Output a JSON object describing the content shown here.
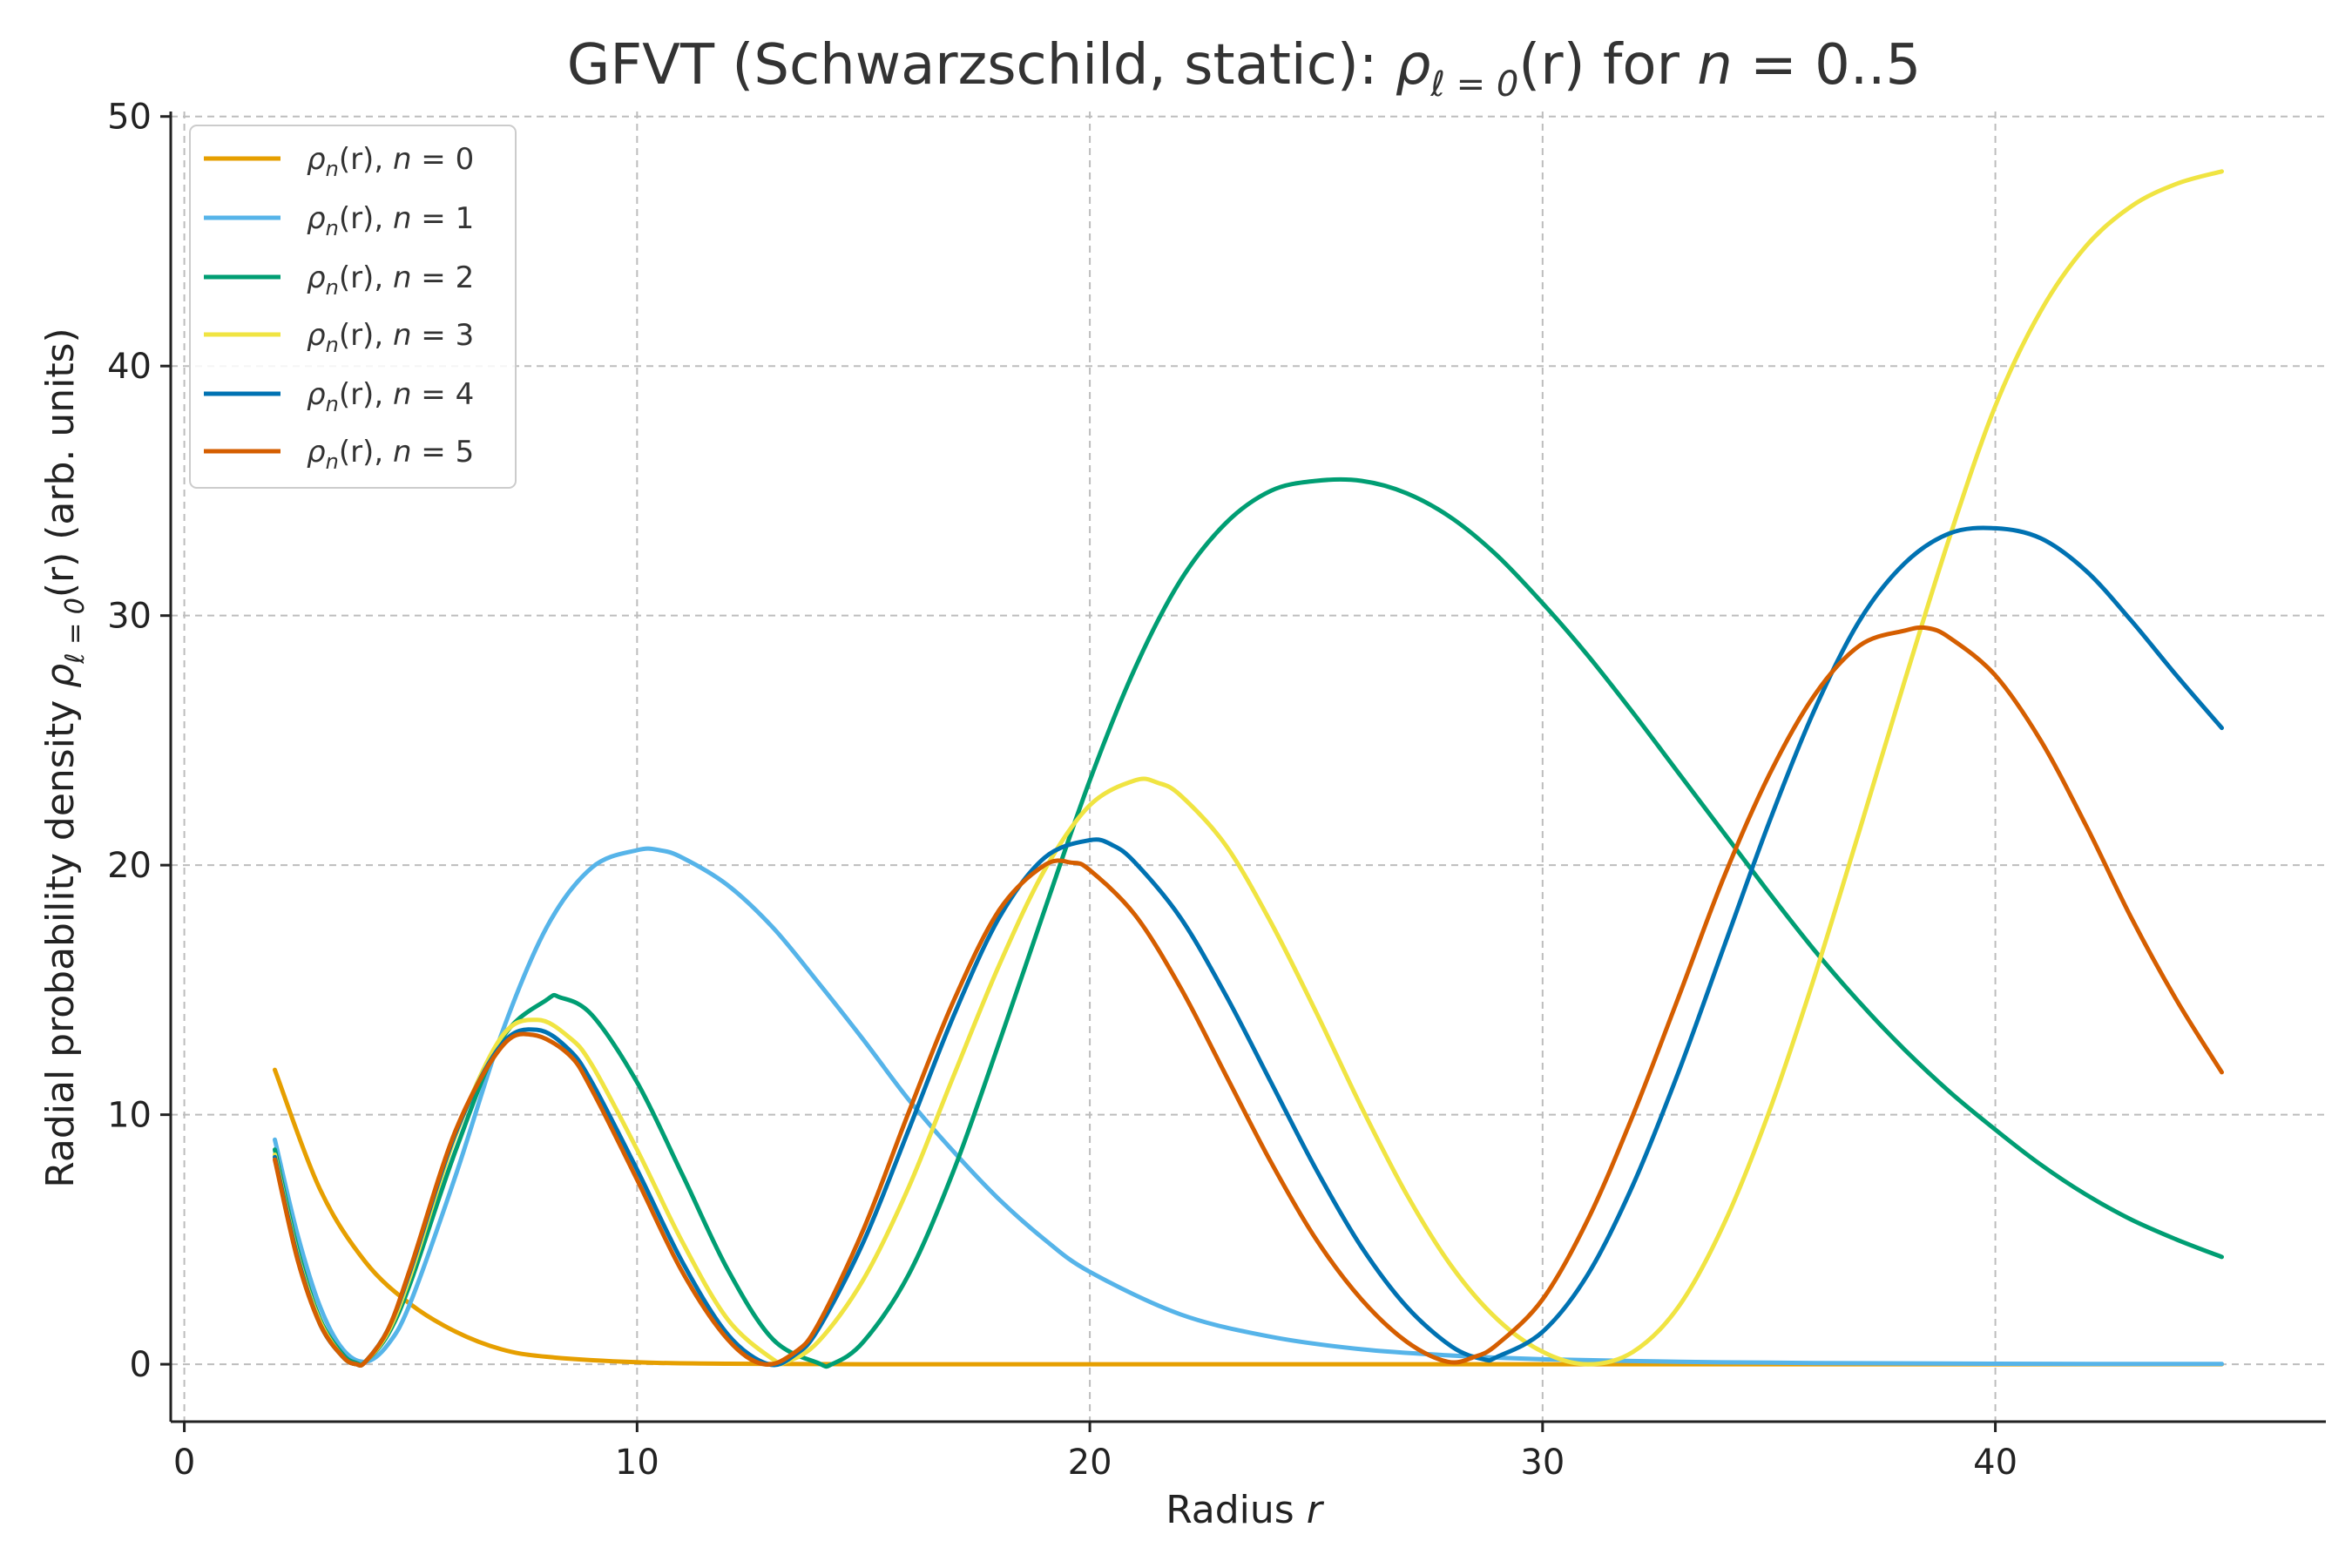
{
  "chart_data": {
    "type": "line",
    "title": "GFVT (Schwarzschild, static): ρℓ = 0(r) for n = 0..5",
    "title_parts": {
      "prefix": "GFVT (Schwarzschild, static): ",
      "rho": "ρ",
      "sub": "ℓ = 0",
      "arg": "(r)",
      "mid": " for ",
      "n": "n",
      "tail": " = 0..5"
    },
    "xlabel": "Radius r",
    "xlabel_parts": {
      "text": "Radius ",
      "var": "r"
    },
    "ylabel": "Radial probability density ρℓ = 0(r) (arb. units)",
    "ylabel_parts": {
      "text": "Radial probability density ",
      "rho": "ρ",
      "sub": "ℓ = 0",
      "arg": "(r)",
      "tail": " (arb. units)"
    },
    "xlim": [
      -0.3,
      47.3
    ],
    "ylim": [
      -2.3,
      50.2
    ],
    "xticks": [
      0,
      10,
      20,
      30,
      40
    ],
    "yticks": [
      0,
      10,
      20,
      30,
      40,
      50
    ],
    "grid": true,
    "legend_position": "top-left",
    "series": [
      {
        "name": "ρn(r), n = 0",
        "color": "#E69F00",
        "points": [
          [
            2,
            11.8
          ],
          [
            3,
            7.0
          ],
          [
            4,
            4.1
          ],
          [
            5,
            2.4
          ],
          [
            6,
            1.3
          ],
          [
            7,
            0.6
          ],
          [
            8,
            0.3
          ],
          [
            10,
            0.08
          ],
          [
            12,
            0.02
          ],
          [
            15,
            0
          ],
          [
            20,
            0
          ],
          [
            25,
            0
          ],
          [
            30,
            0
          ],
          [
            35,
            0
          ],
          [
            40,
            0
          ],
          [
            45,
            0
          ]
        ]
      },
      {
        "name": "ρn(r), n = 1",
        "color": "#56B4E9",
        "points": [
          [
            2,
            9.0
          ],
          [
            2.5,
            5.2
          ],
          [
            3,
            2.3
          ],
          [
            3.5,
            0.6
          ],
          [
            4,
            0.1
          ],
          [
            4.5,
            0.8
          ],
          [
            5,
            2.5
          ],
          [
            6,
            7.6
          ],
          [
            7,
            13.2
          ],
          [
            8,
            17.5
          ],
          [
            9,
            19.9
          ],
          [
            10,
            20.6
          ],
          [
            10.5,
            20.6
          ],
          [
            11,
            20.3
          ],
          [
            12,
            19.2
          ],
          [
            13,
            17.5
          ],
          [
            14,
            15.3
          ],
          [
            15,
            13.0
          ],
          [
            16,
            10.6
          ],
          [
            17,
            8.5
          ],
          [
            18,
            6.6
          ],
          [
            19,
            5.0
          ],
          [
            20,
            3.7
          ],
          [
            22,
            2.0
          ],
          [
            24,
            1.1
          ],
          [
            26,
            0.6
          ],
          [
            28,
            0.35
          ],
          [
            30,
            0.2
          ],
          [
            33,
            0.1
          ],
          [
            36,
            0.05
          ],
          [
            40,
            0.02
          ],
          [
            45,
            0.01
          ]
        ]
      },
      {
        "name": "ρn(r), n = 2",
        "color": "#009E73",
        "points": [
          [
            2,
            8.6
          ],
          [
            2.5,
            4.6
          ],
          [
            3,
            1.8
          ],
          [
            3.5,
            0.4
          ],
          [
            3.8,
            0.05
          ],
          [
            4,
            0.1
          ],
          [
            4.5,
            1.2
          ],
          [
            5,
            3.3
          ],
          [
            6,
            8.6
          ],
          [
            7,
            13.0
          ],
          [
            8,
            14.6
          ],
          [
            8.3,
            14.7
          ],
          [
            9,
            14.0
          ],
          [
            10,
            11.3
          ],
          [
            11,
            7.6
          ],
          [
            12,
            3.8
          ],
          [
            13,
            1.0
          ],
          [
            14,
            0.05
          ],
          [
            14.3,
            0
          ],
          [
            15,
            0.9
          ],
          [
            16,
            3.6
          ],
          [
            17,
            7.8
          ],
          [
            18,
            12.9
          ],
          [
            19,
            18.2
          ],
          [
            20,
            23.4
          ],
          [
            21,
            27.9
          ],
          [
            22,
            31.4
          ],
          [
            23,
            33.7
          ],
          [
            24,
            35.0
          ],
          [
            25,
            35.4
          ],
          [
            26,
            35.4
          ],
          [
            27,
            34.9
          ],
          [
            28,
            33.9
          ],
          [
            29,
            32.4
          ],
          [
            30,
            30.5
          ],
          [
            31,
            28.4
          ],
          [
            32,
            26.1
          ],
          [
            33,
            23.7
          ],
          [
            34,
            21.3
          ],
          [
            35,
            18.9
          ],
          [
            36,
            16.6
          ],
          [
            37,
            14.5
          ],
          [
            38,
            12.6
          ],
          [
            39,
            10.9
          ],
          [
            40,
            9.4
          ],
          [
            41,
            8.0
          ],
          [
            42,
            6.8
          ],
          [
            43,
            5.8
          ],
          [
            44,
            5.0
          ],
          [
            45,
            4.3
          ]
        ]
      },
      {
        "name": "ρn(r), n = 3",
        "color": "#F0E442",
        "points": [
          [
            2,
            8.4
          ],
          [
            2.5,
            4.4
          ],
          [
            3,
            1.7
          ],
          [
            3.5,
            0.3
          ],
          [
            3.8,
            0
          ],
          [
            4,
            0.1
          ],
          [
            4.5,
            1.3
          ],
          [
            5,
            3.6
          ],
          [
            6,
            9.2
          ],
          [
            7,
            13.1
          ],
          [
            7.8,
            13.8
          ],
          [
            8.5,
            13.1
          ],
          [
            9,
            12.0
          ],
          [
            10,
            8.6
          ],
          [
            11,
            4.9
          ],
          [
            12,
            1.8
          ],
          [
            13,
            0.2
          ],
          [
            13.3,
            0.1
          ],
          [
            14,
            0.9
          ],
          [
            15,
            3.4
          ],
          [
            16,
            7.1
          ],
          [
            17,
            11.6
          ],
          [
            18,
            16.0
          ],
          [
            19,
            19.8
          ],
          [
            20,
            22.4
          ],
          [
            21,
            23.4
          ],
          [
            21.5,
            23.3
          ],
          [
            22,
            22.8
          ],
          [
            23,
            20.8
          ],
          [
            24,
            17.7
          ],
          [
            25,
            14.1
          ],
          [
            26,
            10.3
          ],
          [
            27,
            6.8
          ],
          [
            28,
            3.9
          ],
          [
            29,
            1.8
          ],
          [
            30,
            0.5
          ],
          [
            31,
            0
          ],
          [
            32,
            0.5
          ],
          [
            33,
            2.3
          ],
          [
            34,
            5.6
          ],
          [
            35,
            10.1
          ],
          [
            36,
            15.5
          ],
          [
            37,
            21.4
          ],
          [
            38,
            27.4
          ],
          [
            39,
            33.2
          ],
          [
            40,
            38.4
          ],
          [
            41,
            42.2
          ],
          [
            42,
            44.8
          ],
          [
            43,
            46.4
          ],
          [
            44,
            47.3
          ],
          [
            45,
            47.8
          ]
        ]
      },
      {
        "name": "ρn(r), n = 4",
        "color": "#0072B2",
        "points": [
          [
            2,
            8.3
          ],
          [
            2.5,
            4.3
          ],
          [
            3,
            1.6
          ],
          [
            3.5,
            0.3
          ],
          [
            3.8,
            0
          ],
          [
            4,
            0.1
          ],
          [
            4.5,
            1.4
          ],
          [
            5,
            3.8
          ],
          [
            6,
            9.3
          ],
          [
            7,
            12.8
          ],
          [
            7.8,
            13.4
          ],
          [
            8.5,
            12.6
          ],
          [
            9,
            11.3
          ],
          [
            10,
            7.8
          ],
          [
            11,
            4.1
          ],
          [
            12,
            1.2
          ],
          [
            12.9,
            0
          ],
          [
            13.5,
            0.4
          ],
          [
            14,
            1.4
          ],
          [
            15,
            4.9
          ],
          [
            16,
            9.4
          ],
          [
            17,
            14.0
          ],
          [
            18,
            17.9
          ],
          [
            19,
            20.3
          ],
          [
            20,
            21.0
          ],
          [
            20.5,
            20.8
          ],
          [
            21,
            20.1
          ],
          [
            22,
            17.9
          ],
          [
            23,
            14.8
          ],
          [
            24,
            11.3
          ],
          [
            25,
            7.8
          ],
          [
            26,
            4.7
          ],
          [
            27,
            2.3
          ],
          [
            28,
            0.7
          ],
          [
            28.7,
            0.2
          ],
          [
            29,
            0.3
          ],
          [
            30,
            1.3
          ],
          [
            31,
            3.6
          ],
          [
            32,
            7.2
          ],
          [
            33,
            11.7
          ],
          [
            34,
            16.7
          ],
          [
            35,
            21.7
          ],
          [
            36,
            26.2
          ],
          [
            37,
            29.8
          ],
          [
            38,
            32.1
          ],
          [
            39,
            33.3
          ],
          [
            40,
            33.5
          ],
          [
            41,
            33.1
          ],
          [
            42,
            31.8
          ],
          [
            43,
            29.8
          ],
          [
            44,
            27.6
          ],
          [
            45,
            25.5
          ]
        ]
      },
      {
        "name": "ρn(r), n = 5",
        "color": "#D55E00",
        "points": [
          [
            2,
            8.2
          ],
          [
            2.5,
            4.2
          ],
          [
            3,
            1.6
          ],
          [
            3.5,
            0.3
          ],
          [
            3.8,
            0
          ],
          [
            4,
            0.1
          ],
          [
            4.5,
            1.4
          ],
          [
            5,
            3.9
          ],
          [
            6,
            9.4
          ],
          [
            7,
            12.7
          ],
          [
            7.7,
            13.2
          ],
          [
            8.5,
            12.4
          ],
          [
            9,
            11.0
          ],
          [
            10,
            7.4
          ],
          [
            11,
            3.7
          ],
          [
            12,
            1.0
          ],
          [
            12.8,
            0
          ],
          [
            13.5,
            0.5
          ],
          [
            14,
            1.6
          ],
          [
            15,
            5.4
          ],
          [
            16,
            10.1
          ],
          [
            17,
            14.6
          ],
          [
            18,
            18.2
          ],
          [
            19,
            20.0
          ],
          [
            19.6,
            20.1
          ],
          [
            20,
            19.8
          ],
          [
            21,
            18.0
          ],
          [
            22,
            15.1
          ],
          [
            23,
            11.6
          ],
          [
            24,
            8.1
          ],
          [
            25,
            5.0
          ],
          [
            26,
            2.6
          ],
          [
            27,
            0.9
          ],
          [
            27.9,
            0.1
          ],
          [
            28.5,
            0.3
          ],
          [
            29,
            0.8
          ],
          [
            30,
            2.6
          ],
          [
            31,
            5.8
          ],
          [
            32,
            10.0
          ],
          [
            33,
            14.7
          ],
          [
            34,
            19.5
          ],
          [
            35,
            23.6
          ],
          [
            36,
            26.8
          ],
          [
            37,
            28.8
          ],
          [
            38,
            29.4
          ],
          [
            38.5,
            29.5
          ],
          [
            39,
            29.1
          ],
          [
            40,
            27.6
          ],
          [
            41,
            25.0
          ],
          [
            42,
            21.6
          ],
          [
            43,
            17.9
          ],
          [
            44,
            14.6
          ],
          [
            45,
            11.7
          ]
        ]
      }
    ]
  },
  "legend": {
    "entries": [
      {
        "label_rho": "ρ",
        "label_sub": "n",
        "label_rest": "(r), ",
        "label_n": "n",
        "label_eq": " = 0"
      },
      {
        "label_rho": "ρ",
        "label_sub": "n",
        "label_rest": "(r), ",
        "label_n": "n",
        "label_eq": " = 1"
      },
      {
        "label_rho": "ρ",
        "label_sub": "n",
        "label_rest": "(r), ",
        "label_n": "n",
        "label_eq": " = 2"
      },
      {
        "label_rho": "ρ",
        "label_sub": "n",
        "label_rest": "(r), ",
        "label_n": "n",
        "label_eq": " = 3"
      },
      {
        "label_rho": "ρ",
        "label_sub": "n",
        "label_rest": "(r), ",
        "label_n": "n",
        "label_eq": " = 4"
      },
      {
        "label_rho": "ρ",
        "label_sub": "n",
        "label_rest": "(r), ",
        "label_n": "n",
        "label_eq": " = 5"
      }
    ]
  }
}
